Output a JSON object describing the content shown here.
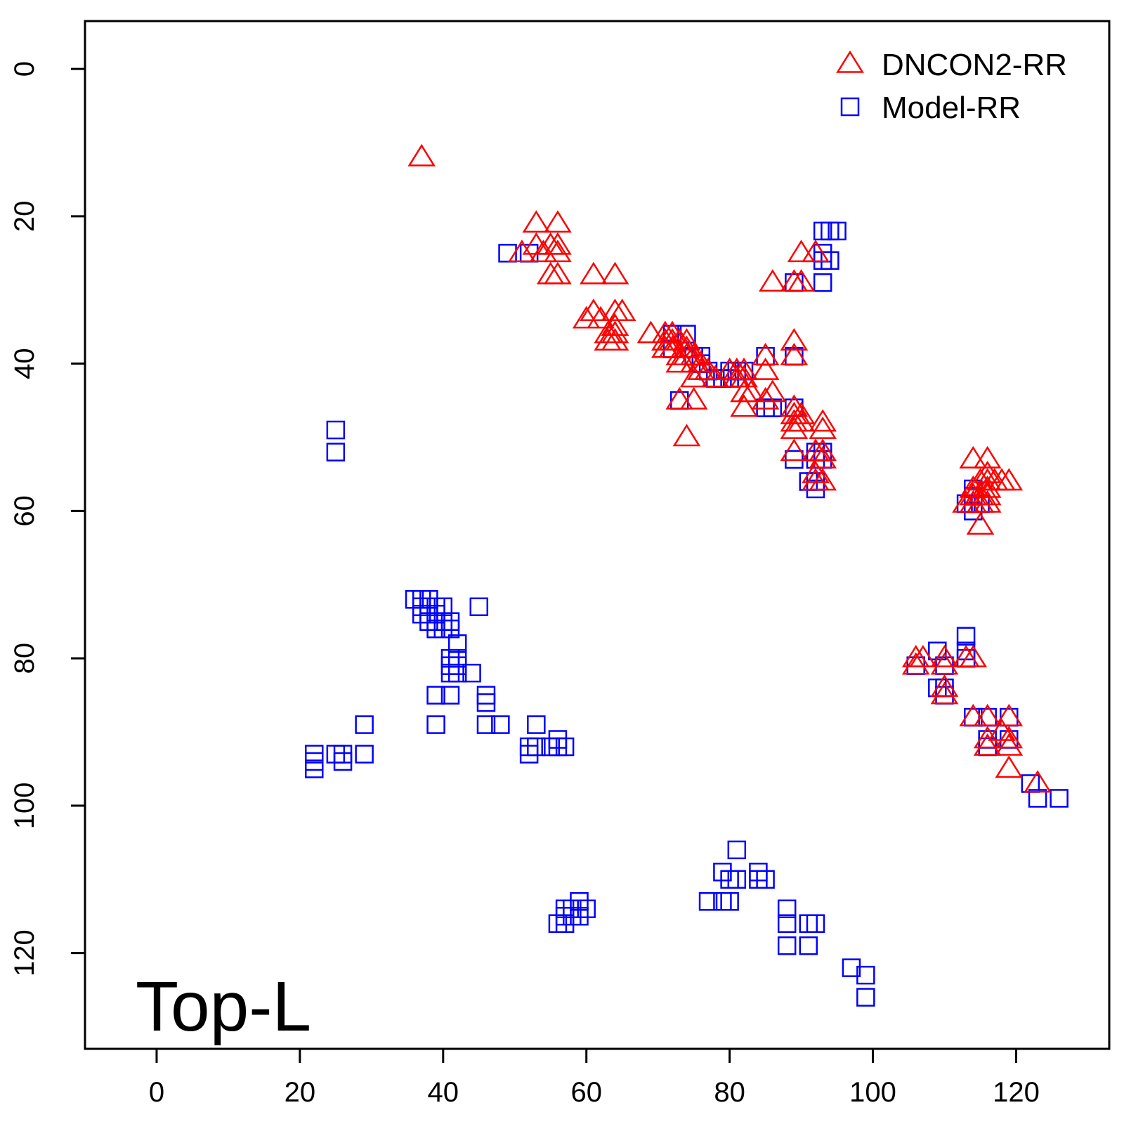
{
  "chart_data": {
    "type": "scatter",
    "title": "",
    "xlabel": "",
    "ylabel": "",
    "annotation": "Top-L",
    "xlim": [
      -10,
      133
    ],
    "ylim": [
      -6.5,
      133
    ],
    "y_inverted": true,
    "xticks": [
      0,
      20,
      40,
      60,
      80,
      100,
      120
    ],
    "yticks": [
      0,
      20,
      40,
      60,
      80,
      100,
      120
    ],
    "grid": false,
    "legend_position": "top-right",
    "series": [
      {
        "name": "DNCON2-RR",
        "marker": "triangle",
        "color": "#ff0000",
        "points": [
          [
            37,
            12
          ],
          [
            51,
            25
          ],
          [
            53,
            21
          ],
          [
            53,
            24
          ],
          [
            54,
            25
          ],
          [
            55,
            24
          ],
          [
            55,
            28
          ],
          [
            56,
            21
          ],
          [
            56,
            24
          ],
          [
            56,
            25
          ],
          [
            56,
            28
          ],
          [
            61,
            28
          ],
          [
            60,
            34
          ],
          [
            61,
            33
          ],
          [
            62,
            34
          ],
          [
            63,
            36
          ],
          [
            63,
            37
          ],
          [
            64,
            28
          ],
          [
            64,
            33
          ],
          [
            64,
            35
          ],
          [
            64,
            36
          ],
          [
            64,
            37
          ],
          [
            65,
            33
          ],
          [
            69,
            36
          ],
          [
            71,
            36
          ],
          [
            71,
            37
          ],
          [
            71,
            38
          ],
          [
            72,
            36
          ],
          [
            72,
            37
          ],
          [
            72,
            38
          ],
          [
            73,
            37
          ],
          [
            73,
            39
          ],
          [
            73,
            40
          ],
          [
            73,
            45
          ],
          [
            74,
            37
          ],
          [
            74,
            38
          ],
          [
            74,
            39
          ],
          [
            74,
            50
          ],
          [
            75,
            39
          ],
          [
            75,
            40
          ],
          [
            75,
            42
          ],
          [
            75,
            45
          ],
          [
            76,
            40
          ],
          [
            76,
            41
          ],
          [
            77,
            41
          ],
          [
            78,
            42
          ],
          [
            80,
            41
          ],
          [
            81,
            41
          ],
          [
            81,
            42
          ],
          [
            82,
            41
          ],
          [
            82,
            42
          ],
          [
            82,
            44
          ],
          [
            82,
            46
          ],
          [
            83,
            44
          ],
          [
            85,
            39
          ],
          [
            85,
            41
          ],
          [
            85,
            45
          ],
          [
            86,
            29
          ],
          [
            86,
            44
          ],
          [
            89,
            29
          ],
          [
            89,
            37
          ],
          [
            89,
            39
          ],
          [
            89,
            46
          ],
          [
            89,
            47
          ],
          [
            89,
            48
          ],
          [
            89,
            49
          ],
          [
            89,
            52
          ],
          [
            90,
            25
          ],
          [
            90,
            29
          ],
          [
            90,
            47
          ],
          [
            90,
            48
          ],
          [
            92,
            25
          ],
          [
            92,
            52
          ],
          [
            92,
            55
          ],
          [
            92,
            56
          ],
          [
            93,
            48
          ],
          [
            93,
            49
          ],
          [
            93,
            52
          ],
          [
            93,
            53
          ],
          [
            93,
            56
          ],
          [
            106,
            80
          ],
          [
            106,
            81
          ],
          [
            107,
            80
          ],
          [
            110,
            80
          ],
          [
            110,
            81
          ],
          [
            110,
            84
          ],
          [
            110,
            85
          ],
          [
            113,
            80
          ],
          [
            113,
            59
          ],
          [
            114,
            53
          ],
          [
            114,
            57
          ],
          [
            114,
            58
          ],
          [
            114,
            59
          ],
          [
            114,
            80
          ],
          [
            114,
            88
          ],
          [
            115,
            56
          ],
          [
            115,
            58
          ],
          [
            115,
            59
          ],
          [
            115,
            62
          ],
          [
            116,
            53
          ],
          [
            116,
            55
          ],
          [
            116,
            56
          ],
          [
            116,
            57
          ],
          [
            116,
            58
          ],
          [
            116,
            59
          ],
          [
            116,
            88
          ],
          [
            116,
            91
          ],
          [
            116,
            92
          ],
          [
            117,
            56
          ],
          [
            118,
            56
          ],
          [
            118,
            90
          ],
          [
            119,
            56
          ],
          [
            119,
            88
          ],
          [
            119,
            91
          ],
          [
            119,
            92
          ],
          [
            119,
            95
          ],
          [
            123,
            97
          ]
        ]
      },
      {
        "name": "Model-RR",
        "marker": "square",
        "color": "#0000ff",
        "points": [
          [
            25,
            49
          ],
          [
            25,
            52
          ],
          [
            22,
            93
          ],
          [
            22,
            94
          ],
          [
            22,
            95
          ],
          [
            25,
            93
          ],
          [
            26,
            93
          ],
          [
            26,
            94
          ],
          [
            29,
            89
          ],
          [
            29,
            93
          ],
          [
            36,
            72
          ],
          [
            37,
            72
          ],
          [
            37,
            73
          ],
          [
            37,
            74
          ],
          [
            38,
            72
          ],
          [
            38,
            73
          ],
          [
            38,
            74
          ],
          [
            38,
            75
          ],
          [
            39,
            73
          ],
          [
            39,
            74
          ],
          [
            39,
            75
          ],
          [
            39,
            76
          ],
          [
            40,
            73
          ],
          [
            40,
            75
          ],
          [
            40,
            76
          ],
          [
            41,
            75
          ],
          [
            41,
            76
          ],
          [
            41,
            80
          ],
          [
            41,
            81
          ],
          [
            41,
            82
          ],
          [
            42,
            78
          ],
          [
            42,
            80
          ],
          [
            42,
            81
          ],
          [
            42,
            82
          ],
          [
            44,
            82
          ],
          [
            45,
            73
          ],
          [
            39,
            85
          ],
          [
            41,
            85
          ],
          [
            39,
            89
          ],
          [
            46,
            85
          ],
          [
            46,
            86
          ],
          [
            46,
            89
          ],
          [
            48,
            89
          ],
          [
            49,
            25
          ],
          [
            52,
            25
          ],
          [
            53,
            89
          ],
          [
            52,
            92
          ],
          [
            52,
            93
          ],
          [
            53,
            92
          ],
          [
            55,
            92
          ],
          [
            56,
            91
          ],
          [
            56,
            92
          ],
          [
            57,
            92
          ],
          [
            56,
            116
          ],
          [
            57,
            114
          ],
          [
            57,
            115
          ],
          [
            57,
            116
          ],
          [
            58,
            114
          ],
          [
            58,
            115
          ],
          [
            59,
            113
          ],
          [
            59,
            115
          ],
          [
            60,
            114
          ],
          [
            72,
            36
          ],
          [
            72,
            38
          ],
          [
            73,
            45
          ],
          [
            74,
            36
          ],
          [
            75,
            39
          ],
          [
            76,
            39
          ],
          [
            76,
            40
          ],
          [
            77,
            41
          ],
          [
            78,
            42
          ],
          [
            79,
            42
          ],
          [
            80,
            41
          ],
          [
            80,
            42
          ],
          [
            81,
            41
          ],
          [
            82,
            41
          ],
          [
            85,
            39
          ],
          [
            86,
            46
          ],
          [
            85,
            46
          ],
          [
            89,
            29
          ],
          [
            89,
            39
          ],
          [
            89,
            46
          ],
          [
            89,
            53
          ],
          [
            91,
            56
          ],
          [
            92,
            52
          ],
          [
            92,
            53
          ],
          [
            92,
            56
          ],
          [
            92,
            57
          ],
          [
            93,
            22
          ],
          [
            93,
            25
          ],
          [
            93,
            26
          ],
          [
            93,
            29
          ],
          [
            93,
            52
          ],
          [
            93,
            53
          ],
          [
            94,
            22
          ],
          [
            94,
            26
          ],
          [
            95,
            22
          ],
          [
            77,
            113
          ],
          [
            79,
            109
          ],
          [
            79,
            113
          ],
          [
            80,
            110
          ],
          [
            80,
            113
          ],
          [
            81,
            106
          ],
          [
            81,
            110
          ],
          [
            84,
            109
          ],
          [
            84,
            110
          ],
          [
            85,
            110
          ],
          [
            88,
            114
          ],
          [
            88,
            116
          ],
          [
            88,
            119
          ],
          [
            91,
            116
          ],
          [
            91,
            119
          ],
          [
            92,
            116
          ],
          [
            97,
            122
          ],
          [
            99,
            123
          ],
          [
            99,
            126
          ],
          [
            106,
            81
          ],
          [
            109,
            79
          ],
          [
            109,
            84
          ],
          [
            110,
            81
          ],
          [
            110,
            84
          ],
          [
            110,
            85
          ],
          [
            113,
            59
          ],
          [
            113,
            77
          ],
          [
            113,
            79
          ],
          [
            113,
            80
          ],
          [
            114,
            57
          ],
          [
            114,
            58
          ],
          [
            114,
            59
          ],
          [
            114,
            60
          ],
          [
            114,
            88
          ],
          [
            115,
            59
          ],
          [
            116,
            88
          ],
          [
            116,
            91
          ],
          [
            116,
            92
          ],
          [
            119,
            88
          ],
          [
            119,
            91
          ],
          [
            122,
            97
          ],
          [
            123,
            99
          ],
          [
            126,
            99
          ]
        ]
      }
    ]
  }
}
